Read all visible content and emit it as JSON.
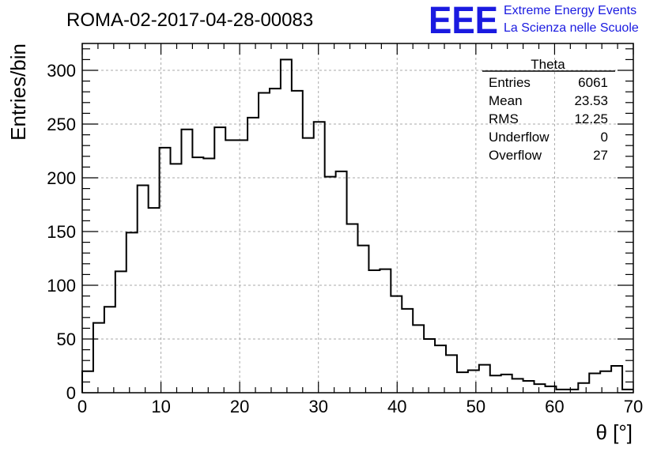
{
  "chart_data": {
    "type": "bar",
    "title": "ROMA-02-2017-04-28-00083",
    "xlabel": "θ [°]",
    "ylabel": "Entries/bin",
    "xlim": [
      0,
      70
    ],
    "ylim": [
      0,
      325
    ],
    "bin_width": 1.4,
    "x_ticks": [
      0,
      10,
      20,
      30,
      40,
      50,
      60,
      70
    ],
    "y_ticks": [
      0,
      50,
      100,
      150,
      200,
      250,
      300
    ],
    "grid": true,
    "values": [
      20,
      65,
      80,
      113,
      149,
      193,
      172,
      228,
      213,
      245,
      219,
      218,
      247,
      235,
      235,
      256,
      279,
      283,
      310,
      281,
      237,
      252,
      201,
      206,
      157,
      137,
      114,
      115,
      90,
      78,
      63,
      50,
      44,
      35,
      19,
      21,
      26,
      16,
      17,
      13,
      11,
      8,
      6,
      3,
      3,
      9,
      18,
      20,
      25,
      3
    ],
    "colors": {
      "line": "#000000",
      "grid": "#aaaaaa",
      "logo": "#1a1ae0"
    }
  },
  "stats": {
    "title": "Theta",
    "rows": [
      {
        "label": "Entries",
        "value": "6061"
      },
      {
        "label": "Mean",
        "value": "23.53"
      },
      {
        "label": "RMS",
        "value": "12.25"
      },
      {
        "label": "Underflow",
        "value": "0"
      },
      {
        "label": "Overflow",
        "value": "27"
      }
    ]
  },
  "logo": {
    "mark": "EEE",
    "line1": "Extreme Energy Events",
    "line2": "La Scienza nelle Scuole"
  }
}
